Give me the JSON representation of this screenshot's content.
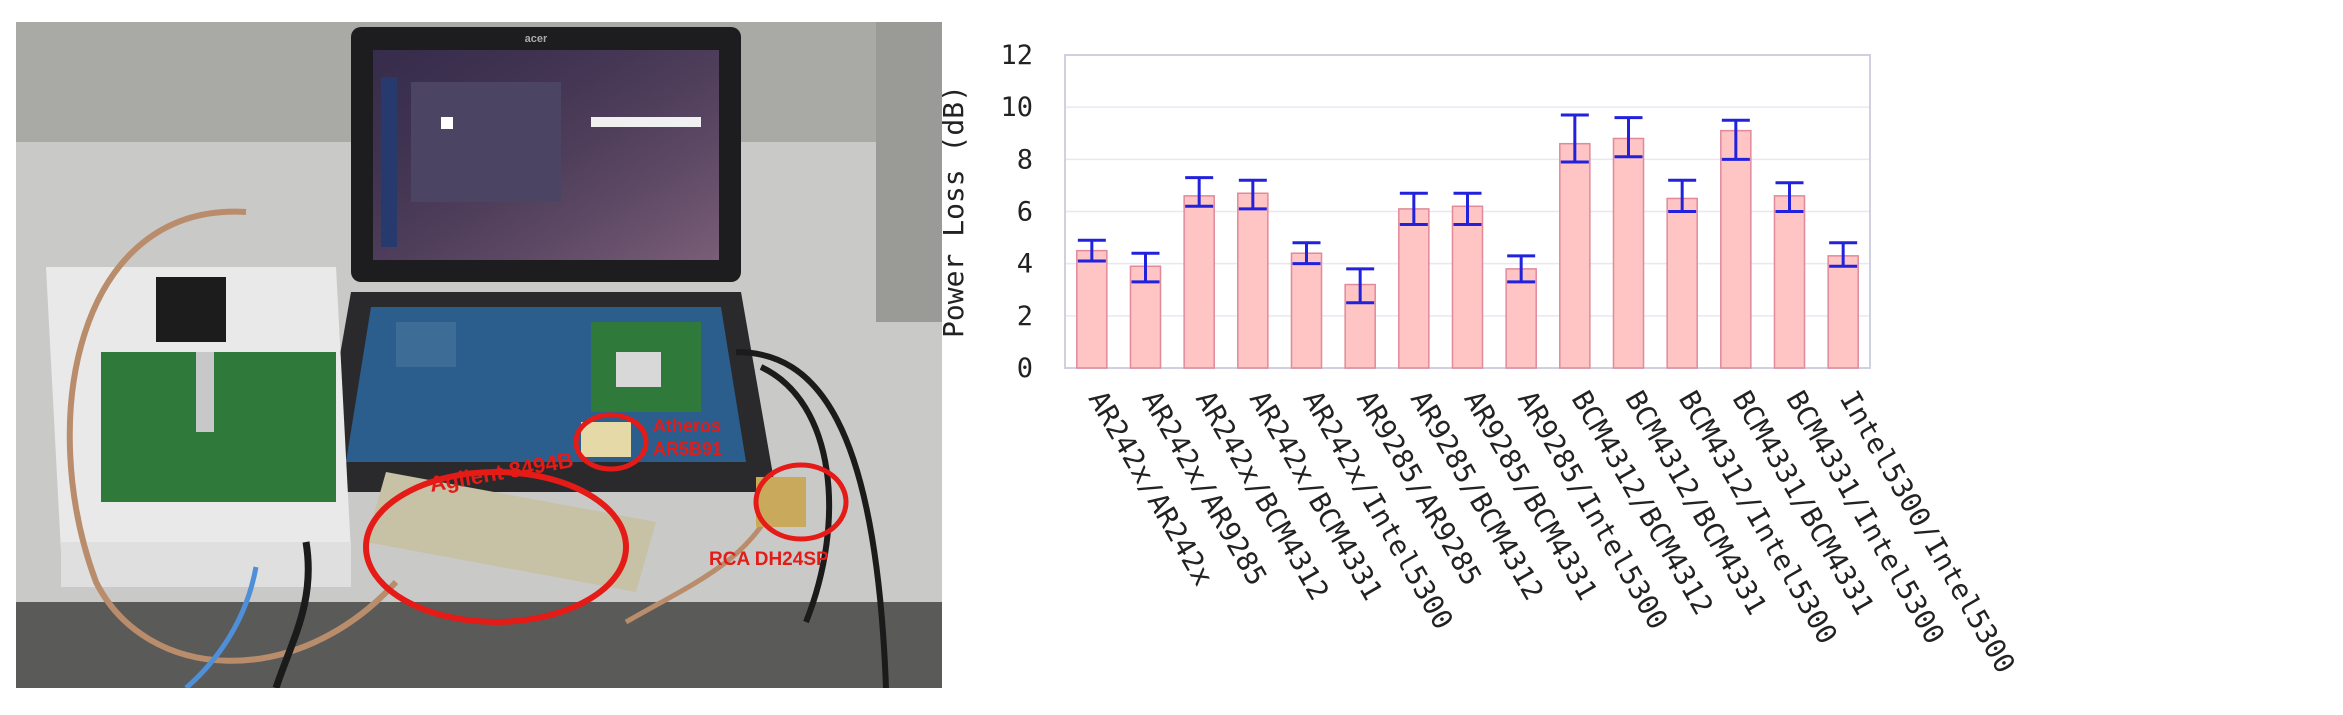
{
  "photo": {
    "labels": {
      "agilent": "Agilent 8494B",
      "atheros_line1": "Atheros",
      "atheros_line2": "AR5B91",
      "rca": "RCA DH24SP"
    },
    "laptop_brand": "acer",
    "colors": {
      "annotation": "#e41b17",
      "desk": "#c7c7c7",
      "board": "#2f7a3a",
      "motherboard": "#2b5e8c",
      "cable": "#b98d6b"
    }
  },
  "chart_data": {
    "type": "bar",
    "title": "",
    "xlabel": "",
    "ylabel": "Power Loss (dB)",
    "ylim": [
      0,
      12
    ],
    "yticks": [
      0,
      2,
      4,
      6,
      8,
      10,
      12
    ],
    "grid": true,
    "categories": [
      "AR242x/AR242x",
      "AR242x/AR9285",
      "AR242x/BCM4312",
      "AR242x/BCM4331",
      "AR242x/Intel5300",
      "AR9285/AR9285",
      "AR9285/BCM4312",
      "AR9285/BCM4331",
      "AR9285/Intel5300",
      "BCM4312/BCM4312",
      "BCM4312/BCM4331",
      "BCM4312/Intel5300",
      "BCM4331/BCM4331",
      "BCM4331/Intel5300",
      "Intel5300/Intel5300"
    ],
    "values": [
      4.5,
      3.9,
      6.6,
      6.7,
      4.4,
      3.2,
      6.1,
      6.2,
      3.8,
      8.6,
      8.8,
      6.5,
      9.1,
      6.6,
      4.3
    ],
    "error_low": [
      4.1,
      3.3,
      6.2,
      6.1,
      4.0,
      2.5,
      5.5,
      5.5,
      3.3,
      7.9,
      8.1,
      6.0,
      8.0,
      6.0,
      3.9
    ],
    "error_high": [
      4.9,
      4.4,
      7.3,
      7.2,
      4.8,
      3.8,
      6.7,
      6.7,
      4.3,
      9.7,
      9.6,
      7.2,
      9.5,
      7.1,
      4.8
    ],
    "colors": {
      "bar_fill": "#ffc4c4",
      "bar_stroke": "#e08a9a",
      "error_bar": "#2222dd",
      "grid": "#e8e8f0",
      "axis": "#d0d0e0",
      "text": "#222222"
    }
  }
}
